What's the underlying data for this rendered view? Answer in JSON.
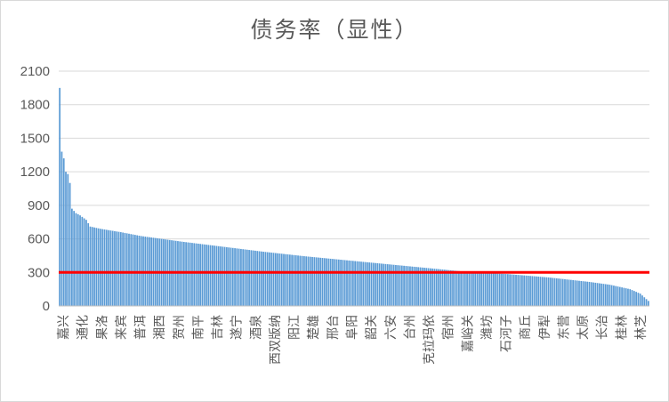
{
  "chart_data": {
    "type": "bar",
    "title": "债务率（显性）",
    "xlabel": "",
    "ylabel": "",
    "ylim": [
      0,
      2100
    ],
    "yticks": [
      0,
      300,
      600,
      900,
      1200,
      1500,
      1800,
      2100
    ],
    "threshold_value": 300,
    "bar_color": "#5b9bd5",
    "threshold_color": "#ff0000",
    "gridlines": true,
    "legend": "none",
    "shown_category_labels": [
      "嘉兴",
      "通化",
      "果洛",
      "来宾",
      "普洱",
      "湘西",
      "贺州",
      "南平",
      "吉林",
      "遂宁",
      "酒泉",
      "西双版纳",
      "阳江",
      "楚雄",
      "邢台",
      "阜阳",
      "韶关",
      "六安",
      "台州",
      "克拉玛依",
      "宿州",
      "嘉峪关",
      "潍坊",
      "石河子",
      "商丘",
      "伊犁",
      "东营",
      "太原",
      "长治",
      "桂林",
      "林芝"
    ],
    "bar_count": 290,
    "value_profile": [
      [
        0,
        1950
      ],
      [
        1,
        1380
      ],
      [
        2,
        1320
      ],
      [
        3,
        1200
      ],
      [
        4,
        1180
      ],
      [
        5,
        1100
      ],
      [
        6,
        870
      ],
      [
        8,
        830
      ],
      [
        10,
        810
      ],
      [
        13,
        770
      ],
      [
        15,
        710
      ],
      [
        20,
        690
      ],
      [
        30,
        660
      ],
      [
        40,
        625
      ],
      [
        60,
        575
      ],
      [
        80,
        530
      ],
      [
        100,
        485
      ],
      [
        120,
        445
      ],
      [
        140,
        410
      ],
      [
        160,
        375
      ],
      [
        180,
        340
      ],
      [
        200,
        305
      ],
      [
        220,
        285
      ],
      [
        240,
        255
      ],
      [
        260,
        215
      ],
      [
        270,
        190
      ],
      [
        280,
        150
      ],
      [
        285,
        110
      ],
      [
        289,
        45
      ]
    ]
  }
}
